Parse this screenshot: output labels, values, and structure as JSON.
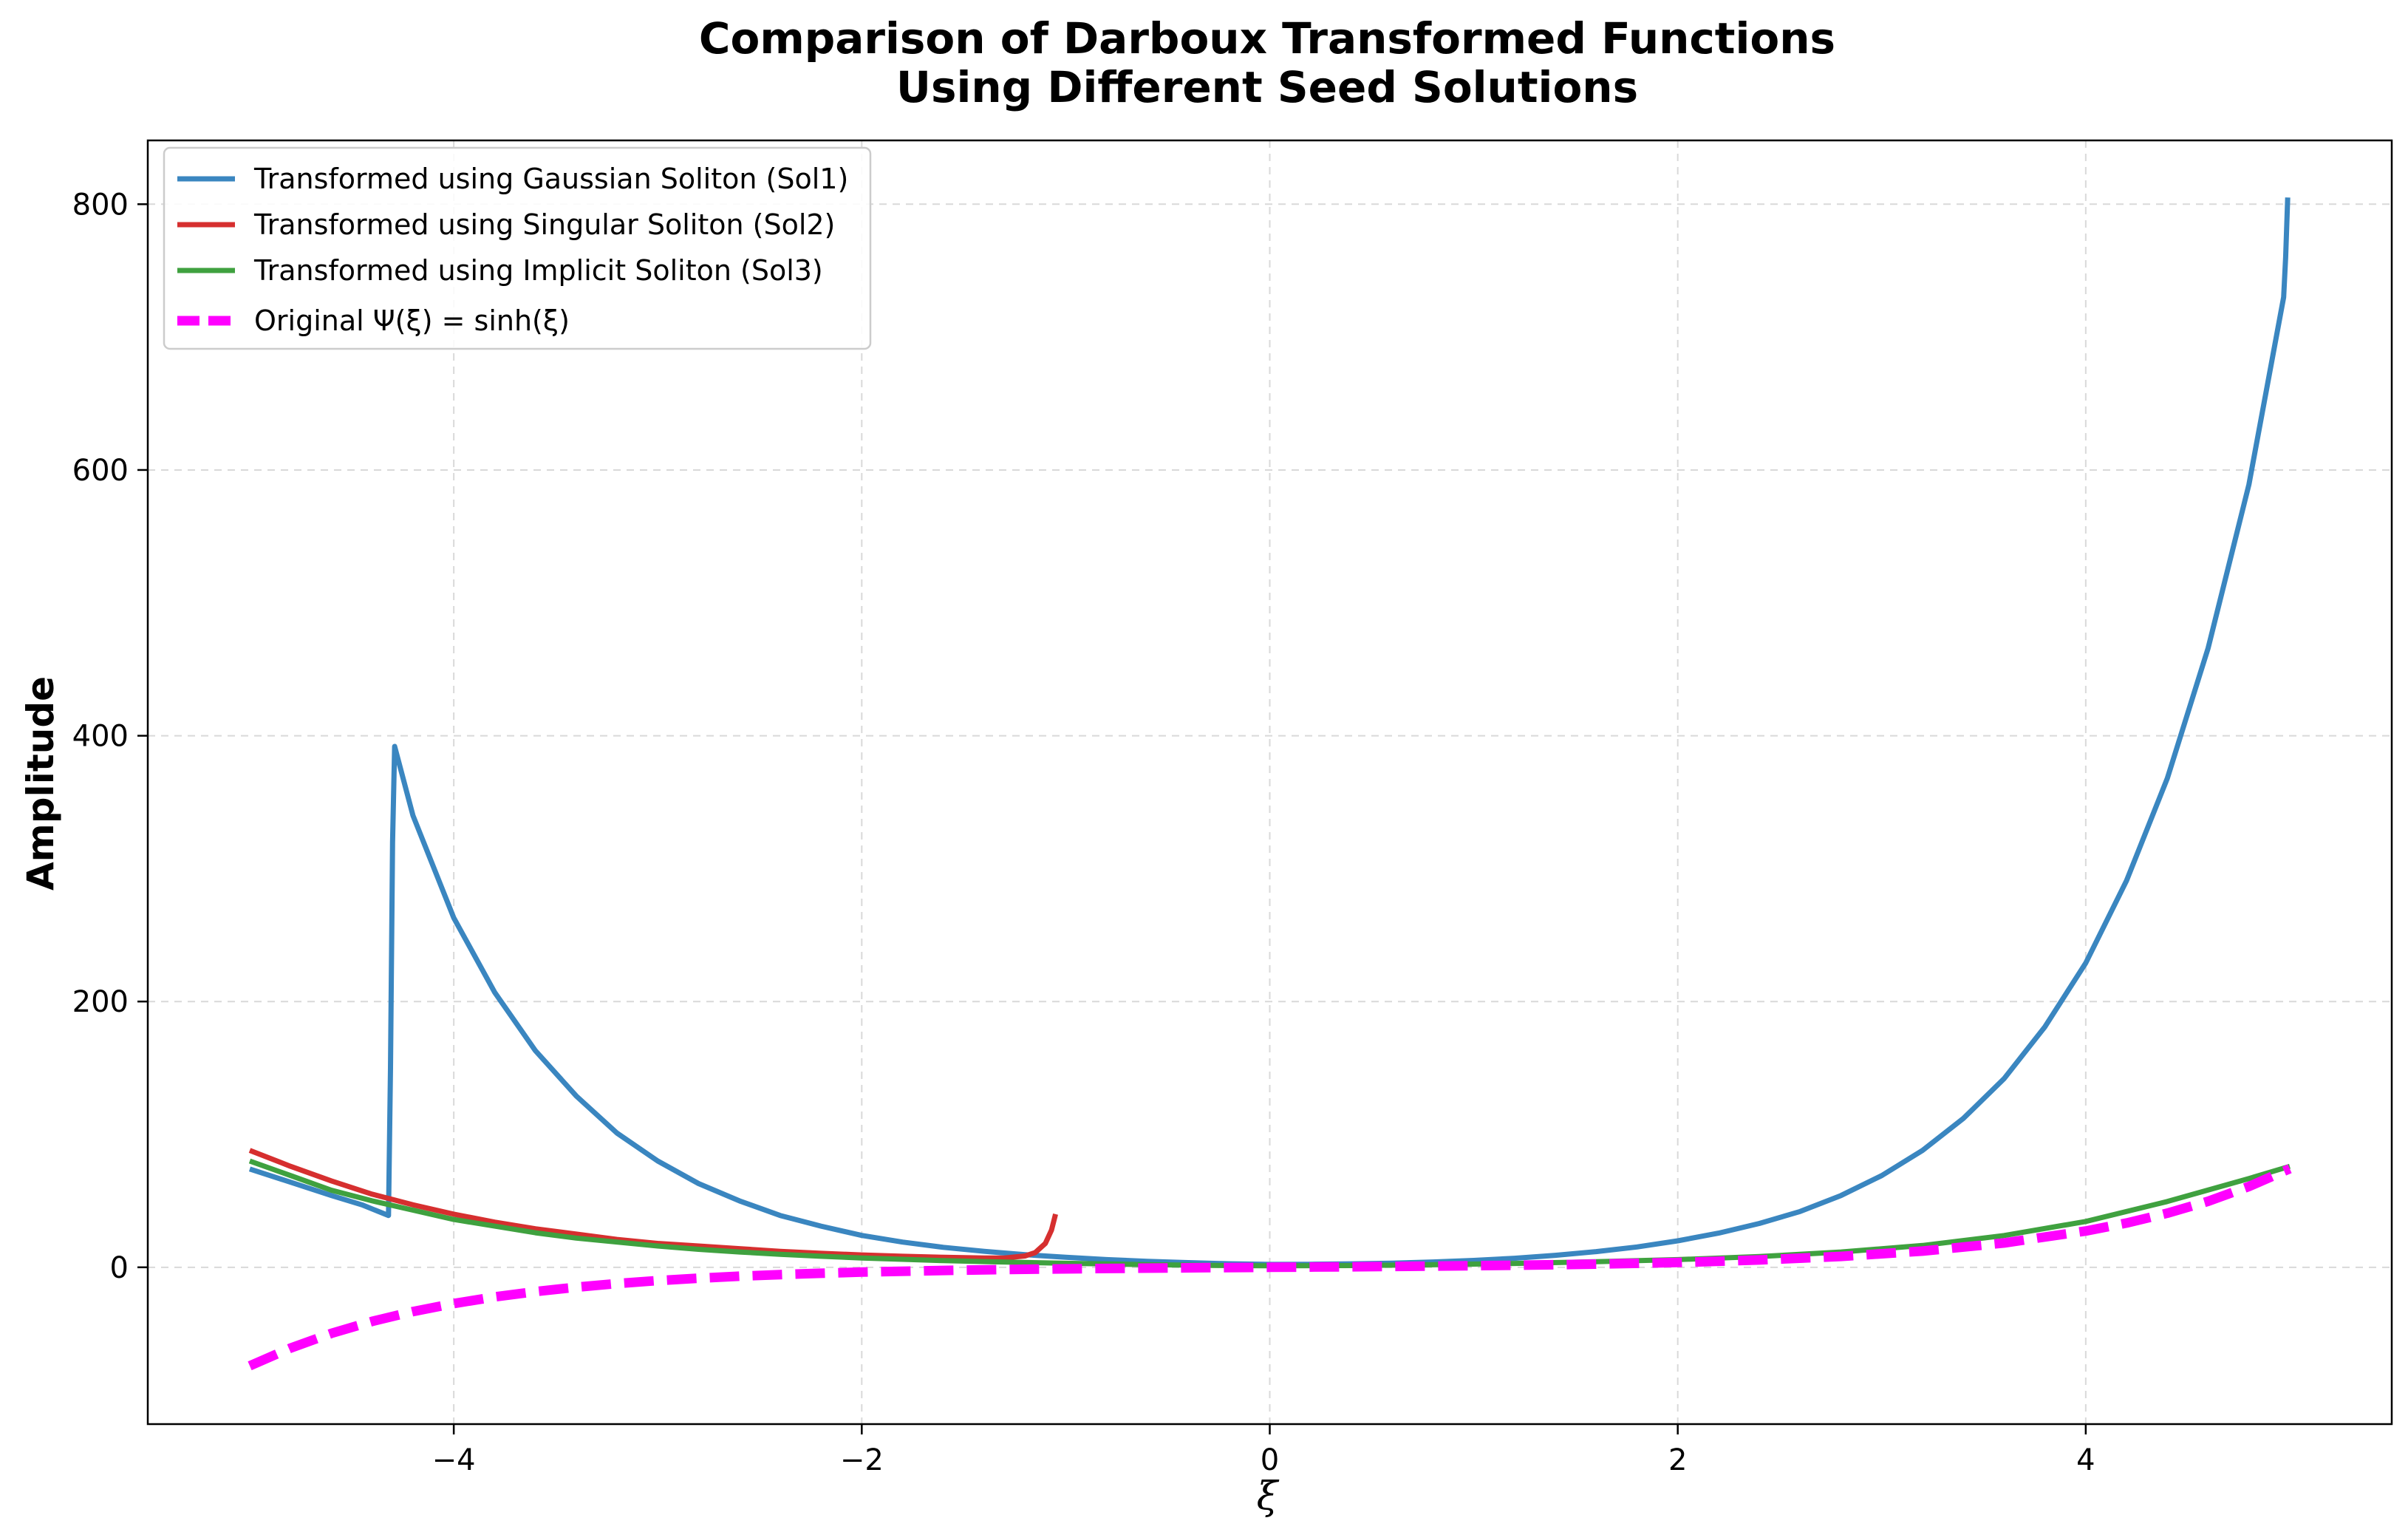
{
  "chart_data": {
    "type": "line",
    "title_line1": "Comparison of Darboux Transformed Functions",
    "title_line2": "Using Different Seed Solutions",
    "xlabel": "ξ",
    "ylabel": "Amplitude",
    "xlim": [
      -5.5,
      5.5
    ],
    "ylim": [
      -118,
      848
    ],
    "xticks": [
      -4,
      -2,
      0,
      2,
      4
    ],
    "xtick_labels": [
      "−4",
      "−2",
      "0",
      "2",
      "4"
    ],
    "yticks": [
      0,
      200,
      400,
      600,
      800
    ],
    "ytick_labels": [
      "0",
      "200",
      "400",
      "600",
      "800"
    ],
    "grid": true,
    "legend_position": "top-left",
    "series": [
      {
        "name": "Transformed using Gaussian Soliton (Sol1)",
        "color": "#3a86c0",
        "style": "solid",
        "points": [
          [
            -5.0,
            74
          ],
          [
            -4.8,
            64
          ],
          [
            -4.6,
            54
          ],
          [
            -4.45,
            47
          ],
          [
            -4.32,
            39
          ],
          [
            -4.31,
            150
          ],
          [
            -4.3,
            320
          ],
          [
            -4.29,
            392
          ],
          [
            -4.2,
            340
          ],
          [
            -4.0,
            263
          ],
          [
            -3.8,
            207
          ],
          [
            -3.6,
            163
          ],
          [
            -3.4,
            129
          ],
          [
            -3.2,
            101
          ],
          [
            -3.0,
            80
          ],
          [
            -2.8,
            63
          ],
          [
            -2.6,
            50
          ],
          [
            -2.4,
            39
          ],
          [
            -2.2,
            31
          ],
          [
            -2.0,
            24
          ],
          [
            -1.8,
            19
          ],
          [
            -1.6,
            15
          ],
          [
            -1.4,
            12
          ],
          [
            -1.2,
            9.5
          ],
          [
            -1.0,
            7.5
          ],
          [
            -0.8,
            5.8
          ],
          [
            -0.6,
            4.5
          ],
          [
            -0.4,
            3.5
          ],
          [
            -0.2,
            2.7
          ],
          [
            0.0,
            2.2
          ],
          [
            0.2,
            2.3
          ],
          [
            0.4,
            2.6
          ],
          [
            0.6,
            3.1
          ],
          [
            0.8,
            4.0
          ],
          [
            1.0,
            5.2
          ],
          [
            1.2,
            6.8
          ],
          [
            1.4,
            9.0
          ],
          [
            1.6,
            11.8
          ],
          [
            1.8,
            15.3
          ],
          [
            2.0,
            19.9
          ],
          [
            2.2,
            25.7
          ],
          [
            2.4,
            33
          ],
          [
            2.6,
            42
          ],
          [
            2.8,
            54
          ],
          [
            3.0,
            69
          ],
          [
            3.2,
            88
          ],
          [
            3.4,
            112
          ],
          [
            3.6,
            142
          ],
          [
            3.8,
            181
          ],
          [
            4.0,
            229
          ],
          [
            4.2,
            291
          ],
          [
            4.4,
            368
          ],
          [
            4.6,
            466
          ],
          [
            4.8,
            589
          ],
          [
            4.97,
            730
          ],
          [
            4.98,
            760
          ],
          [
            4.99,
            805
          ]
        ]
      },
      {
        "name": "Transformed using Singular Soliton (Sol2)",
        "color": "#d62f2f",
        "style": "solid",
        "points": [
          [
            -5.0,
            88
          ],
          [
            -4.8,
            76
          ],
          [
            -4.6,
            65
          ],
          [
            -4.4,
            55
          ],
          [
            -4.2,
            47
          ],
          [
            -4.0,
            40
          ],
          [
            -3.8,
            34
          ],
          [
            -3.6,
            29
          ],
          [
            -3.4,
            25
          ],
          [
            -3.2,
            21
          ],
          [
            -3.0,
            18
          ],
          [
            -2.8,
            16
          ],
          [
            -2.6,
            14
          ],
          [
            -2.4,
            12
          ],
          [
            -2.2,
            10.5
          ],
          [
            -2.0,
            9.3
          ],
          [
            -1.8,
            8.3
          ],
          [
            -1.6,
            7.5
          ],
          [
            -1.4,
            7.0
          ],
          [
            -1.3,
            7.0
          ],
          [
            -1.2,
            8.5
          ],
          [
            -1.15,
            11
          ],
          [
            -1.1,
            18
          ],
          [
            -1.07,
            28
          ],
          [
            -1.05,
            40
          ]
        ]
      },
      {
        "name": "Transformed using Implicit Soliton (Sol3)",
        "color": "#3fa13f",
        "style": "solid",
        "points": [
          [
            -5.0,
            80
          ],
          [
            -4.8,
            69
          ],
          [
            -4.6,
            58
          ],
          [
            -4.4,
            50
          ],
          [
            -4.2,
            43
          ],
          [
            -4.0,
            36
          ],
          [
            -3.8,
            31
          ],
          [
            -3.6,
            26
          ],
          [
            -3.4,
            22
          ],
          [
            -3.2,
            19
          ],
          [
            -3.0,
            16
          ],
          [
            -2.8,
            13.5
          ],
          [
            -2.6,
            11.5
          ],
          [
            -2.4,
            9.8
          ],
          [
            -2.2,
            8.3
          ],
          [
            -2.0,
            7.0
          ],
          [
            -1.8,
            6.0
          ],
          [
            -1.6,
            5.0
          ],
          [
            -1.4,
            4.3
          ],
          [
            -1.2,
            3.6
          ],
          [
            -1.0,
            3.0
          ],
          [
            -0.8,
            2.5
          ],
          [
            -0.6,
            2.0
          ],
          [
            -0.4,
            1.6
          ],
          [
            -0.2,
            1.3
          ],
          [
            0.0,
            1.2
          ],
          [
            0.4,
            1.3
          ],
          [
            0.8,
            1.9
          ],
          [
            1.2,
            2.9
          ],
          [
            1.6,
            4.2
          ],
          [
            2.0,
            5.8
          ],
          [
            2.4,
            8.1
          ],
          [
            2.8,
            11.5
          ],
          [
            3.2,
            16.4
          ],
          [
            3.6,
            23.9
          ],
          [
            4.0,
            34.5
          ],
          [
            4.4,
            49.5
          ],
          [
            4.8,
            66.8
          ],
          [
            5.0,
            76
          ]
        ]
      },
      {
        "name": "Original Ψ(ξ) = sinh(ξ)",
        "color": "#ff00ff",
        "style": "dashed",
        "points": [
          [
            -5.0,
            -74.2
          ],
          [
            -4.8,
            -60.8
          ],
          [
            -4.6,
            -49.7
          ],
          [
            -4.4,
            -40.7
          ],
          [
            -4.2,
            -33.3
          ],
          [
            -4.0,
            -27.3
          ],
          [
            -3.8,
            -22.3
          ],
          [
            -3.6,
            -18.3
          ],
          [
            -3.4,
            -15.0
          ],
          [
            -3.2,
            -12.2
          ],
          [
            -3.0,
            -10.0
          ],
          [
            -2.8,
            -8.2
          ],
          [
            -2.6,
            -6.7
          ],
          [
            -2.4,
            -5.5
          ],
          [
            -2.2,
            -4.5
          ],
          [
            -2.0,
            -3.6
          ],
          [
            -1.6,
            -2.4
          ],
          [
            -1.2,
            -1.5
          ],
          [
            -0.8,
            -0.9
          ],
          [
            -0.4,
            -0.4
          ],
          [
            0.0,
            0.0
          ],
          [
            0.4,
            0.4
          ],
          [
            0.8,
            0.9
          ],
          [
            1.2,
            1.5
          ],
          [
            1.6,
            2.4
          ],
          [
            2.0,
            3.6
          ],
          [
            2.4,
            5.5
          ],
          [
            2.8,
            8.2
          ],
          [
            3.2,
            12.2
          ],
          [
            3.6,
            18.3
          ],
          [
            4.0,
            27.3
          ],
          [
            4.2,
            33.3
          ],
          [
            4.4,
            40.7
          ],
          [
            4.6,
            49.7
          ],
          [
            4.8,
            60.8
          ],
          [
            5.0,
            74.2
          ]
        ]
      }
    ]
  }
}
